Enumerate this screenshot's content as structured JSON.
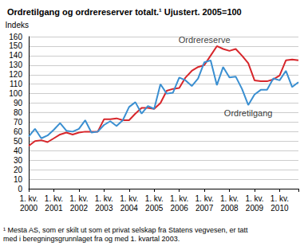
{
  "chart_data": {
    "type": "line",
    "title": "Ordretilgang og ordrereserver totalt.¹ Ujustert. 2005=100",
    "y_label": "Indeks",
    "footnote": "¹ Mesta AS, som er skilt ut som et privat selskap fra Statens vegvesen, er tatt\nmed i beregningsgrunnlaget fra og med 1. kvartal 2003.",
    "categories": [
      "1. kv.\n2000",
      null,
      null,
      null,
      "1. kv.\n2001",
      null,
      null,
      null,
      "1. kv.\n2002",
      null,
      null,
      null,
      "1. kv.\n2003",
      null,
      null,
      null,
      "1. kv.\n2004",
      null,
      null,
      null,
      "1. kv.\n2005",
      null,
      null,
      null,
      "1. kv.\n2006",
      null,
      null,
      null,
      "1. kv.\n2007",
      null,
      null,
      null,
      "1. kv.\n2008",
      null,
      null,
      null,
      "1. kv.\n2009",
      null,
      null,
      null,
      "1. kv.\n2010",
      null,
      null,
      null
    ],
    "series": [
      {
        "name": "Ordrereserve",
        "color": "#d7262b",
        "values": [
          45,
          50,
          51,
          49,
          53,
          57,
          59,
          57,
          59,
          60,
          60,
          60,
          73,
          73,
          74,
          72,
          72,
          79,
          85,
          85,
          84,
          90,
          103,
          105,
          106,
          117,
          124,
          128,
          130,
          140,
          150,
          147,
          145,
          147,
          140,
          132,
          114,
          113,
          113,
          115,
          119,
          135,
          136,
          135
        ]
      },
      {
        "name": "Ordretilgang",
        "color": "#3a8fd1",
        "values": [
          55,
          63,
          53,
          56,
          62,
          69,
          61,
          60,
          63,
          72,
          59,
          60,
          67,
          71,
          66,
          72,
          86,
          91,
          79,
          87,
          84,
          110,
          100,
          101,
          117,
          114,
          108,
          116,
          133,
          135,
          109,
          128,
          117,
          118,
          105,
          88,
          99,
          104,
          104,
          116,
          114,
          124,
          107,
          112
        ]
      }
    ],
    "annotations": [
      {
        "text": "Ordrereserve",
        "category_index": 28,
        "y": 157
      },
      {
        "text": "Ordretilgang",
        "category_index": 35,
        "y": 80
      }
    ],
    "ylim": [
      0,
      160
    ],
    "yticks": [
      0,
      10,
      20,
      30,
      40,
      50,
      60,
      70,
      80,
      90,
      100,
      110,
      120,
      130,
      140,
      150,
      160
    ],
    "grid": true
  }
}
